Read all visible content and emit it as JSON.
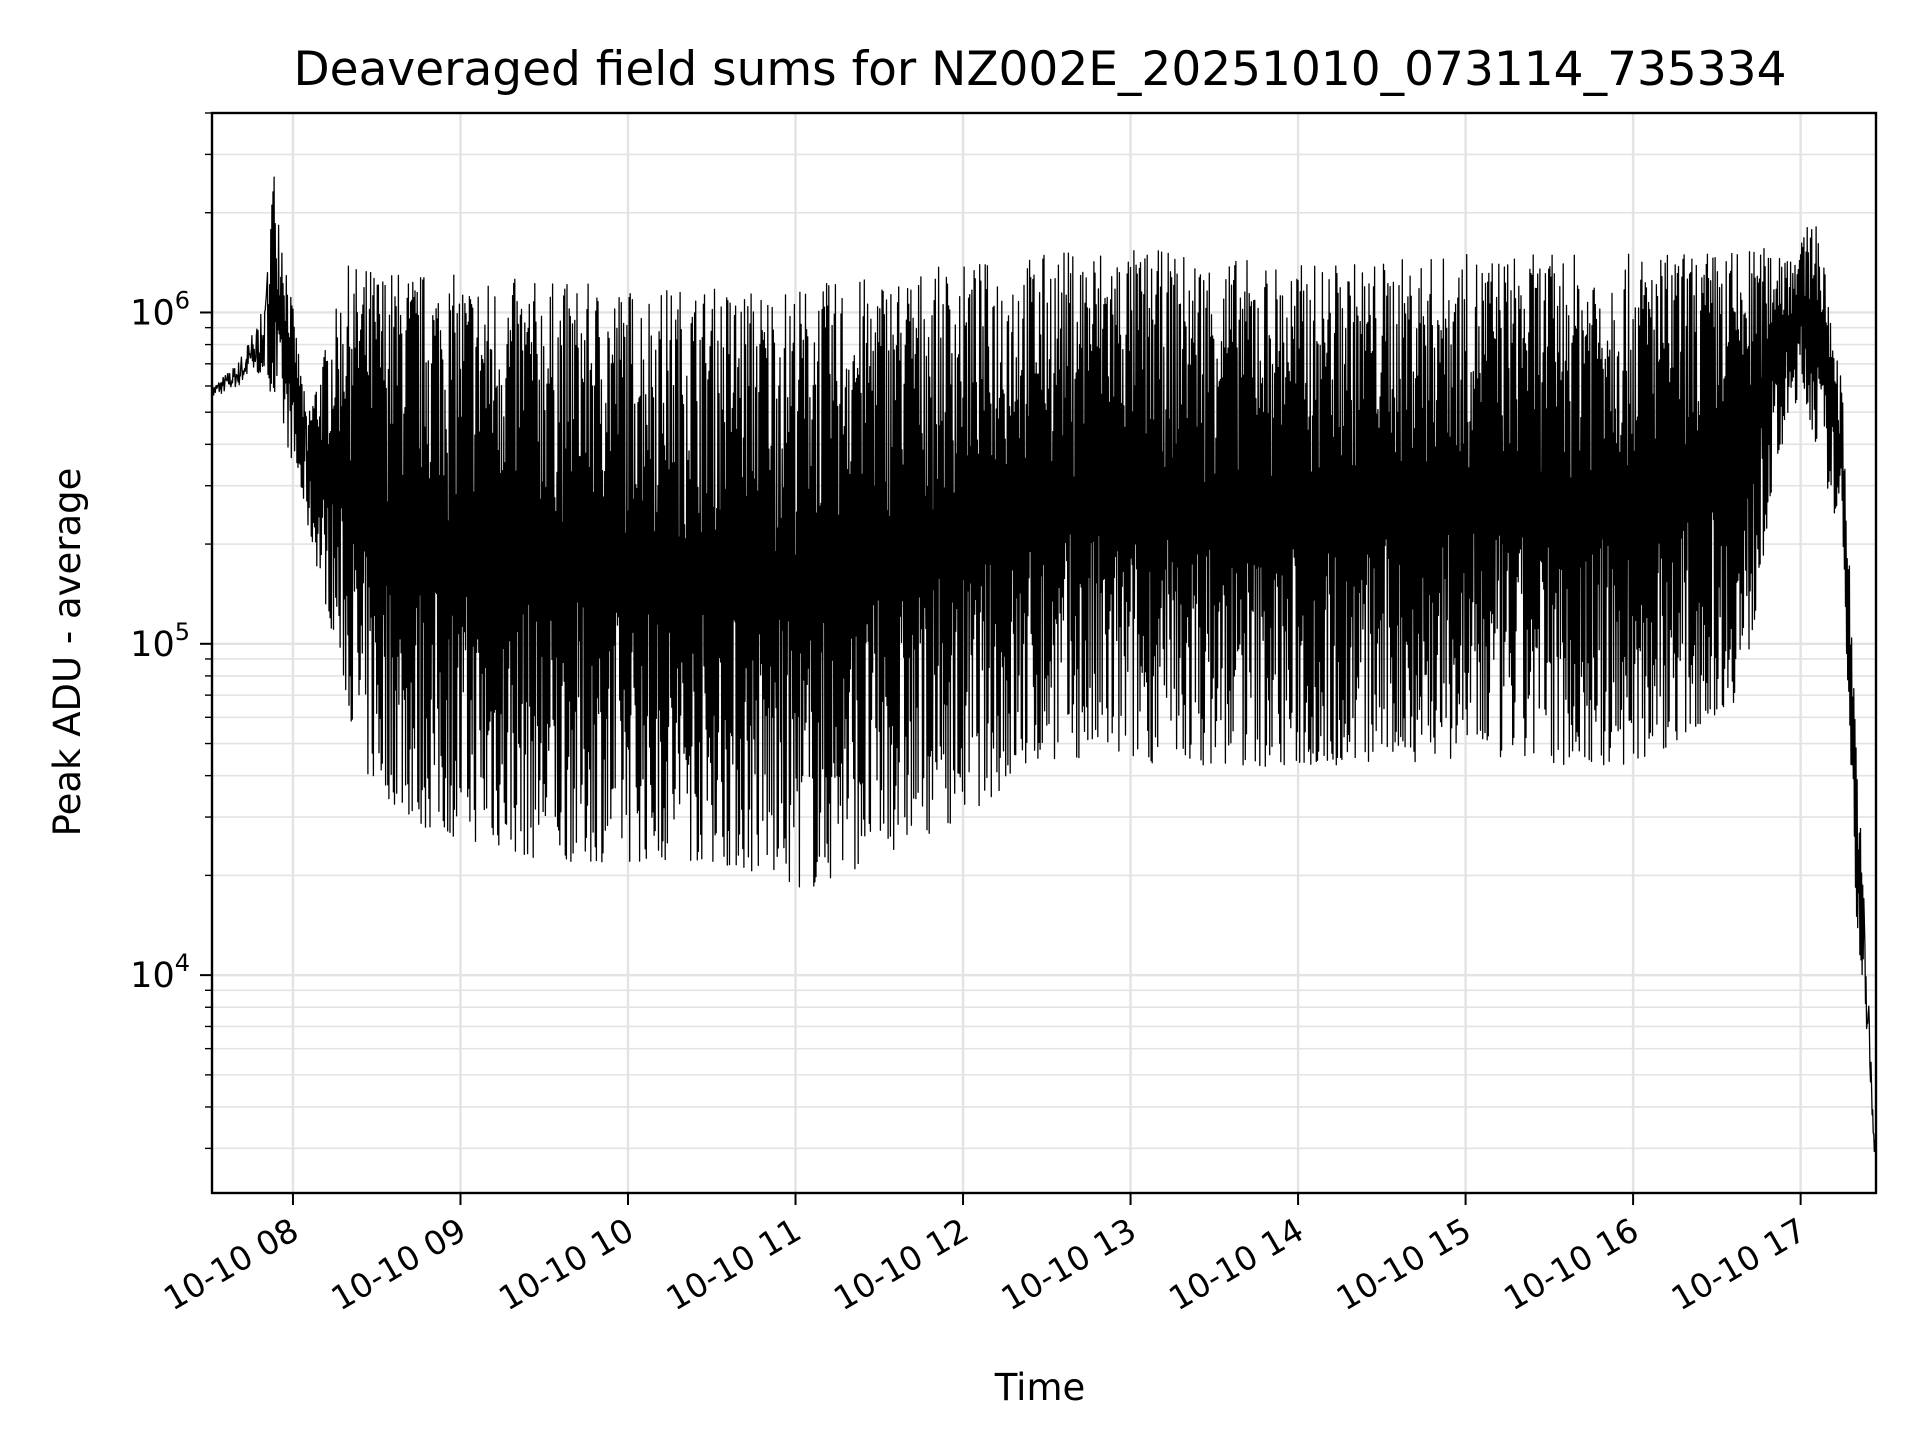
{
  "chart_data": {
    "type": "line",
    "title": "Deaveraged field sums for NZ002E_20251010_073114_735334",
    "xlabel": "Time",
    "ylabel": "Peak ADU - average",
    "yscale": "log",
    "xlim": [
      "2025-10-10T07:31",
      "2025-10-10T17:27"
    ],
    "ylim": [
      2200,
      4000000
    ],
    "grid": true,
    "x_tick_labels": [
      "10-10 08",
      "10-10 09",
      "10-10 10",
      "10-10 11",
      "10-10 12",
      "10-10 13",
      "10-10 14",
      "10-10 15",
      "10-10 16",
      "10-10 17"
    ],
    "x_ticks": [
      "2025-10-10T08:00",
      "2025-10-10T09:00",
      "2025-10-10T10:00",
      "2025-10-10T11:00",
      "2025-10-10T12:00",
      "2025-10-10T13:00",
      "2025-10-10T14:00",
      "2025-10-10T15:00",
      "2025-10-10T16:00",
      "2025-10-10T17:00"
    ],
    "y_ticks": [
      {
        "value": 10000,
        "base": "10",
        "exp": "4"
      },
      {
        "value": 100000,
        "base": "10",
        "exp": "5"
      },
      {
        "value": 1000000,
        "base": "10",
        "exp": "6"
      }
    ],
    "line_color": "#000000",
    "series": [
      {
        "envelope_upper": [
          {
            "x": "2025-10-10T07:31",
            "y": 600000
          },
          {
            "x": "2025-10-10T07:40",
            "y": 700000
          },
          {
            "x": "2025-10-10T07:50",
            "y": 1050000
          },
          {
            "x": "2025-10-10T07:53",
            "y": 2800000
          },
          {
            "x": "2025-10-10T08:05",
            "y": 500000
          },
          {
            "x": "2025-10-10T08:20",
            "y": 1400000
          },
          {
            "x": "2025-10-10T09:00",
            "y": 1300000
          },
          {
            "x": "2025-10-10T10:00",
            "y": 1200000
          },
          {
            "x": "2025-10-10T11:00",
            "y": 1200000
          },
          {
            "x": "2025-10-10T12:00",
            "y": 1400000
          },
          {
            "x": "2025-10-10T12:50",
            "y": 1600000
          },
          {
            "x": "2025-10-10T14:00",
            "y": 1400000
          },
          {
            "x": "2025-10-10T15:00",
            "y": 1500000
          },
          {
            "x": "2025-10-10T16:00",
            "y": 1500000
          },
          {
            "x": "2025-10-10T17:00",
            "y": 1600000
          },
          {
            "x": "2025-10-10T17:05",
            "y": 2100000
          },
          {
            "x": "2025-10-10T17:15",
            "y": 600000
          },
          {
            "x": "2025-10-10T17:20",
            "y": 50000
          },
          {
            "x": "2025-10-10T17:27",
            "y": 3000
          }
        ],
        "envelope_lower": [
          {
            "x": "2025-10-10T07:31",
            "y": 550000
          },
          {
            "x": "2025-10-10T07:50",
            "y": 650000
          },
          {
            "x": "2025-10-10T08:00",
            "y": 350000
          },
          {
            "x": "2025-10-10T08:15",
            "y": 100000
          },
          {
            "x": "2025-10-10T08:25",
            "y": 40000
          },
          {
            "x": "2025-10-10T08:45",
            "y": 28000
          },
          {
            "x": "2025-10-10T09:30",
            "y": 22000
          },
          {
            "x": "2025-10-10T10:30",
            "y": 22000
          },
          {
            "x": "2025-10-10T11:05",
            "y": 18000
          },
          {
            "x": "2025-10-10T12:00",
            "y": 30000
          },
          {
            "x": "2025-10-10T12:30",
            "y": 45000
          },
          {
            "x": "2025-10-10T14:00",
            "y": 42000
          },
          {
            "x": "2025-10-10T15:00",
            "y": 45000
          },
          {
            "x": "2025-10-10T16:00",
            "y": 42000
          },
          {
            "x": "2025-10-10T16:40",
            "y": 70000
          },
          {
            "x": "2025-10-10T16:50",
            "y": 300000
          },
          {
            "x": "2025-10-10T17:00",
            "y": 600000
          },
          {
            "x": "2025-10-10T17:15",
            "y": 200000
          },
          {
            "x": "2025-10-10T17:20",
            "y": 15000
          },
          {
            "x": "2025-10-10T17:27",
            "y": 2500
          }
        ]
      }
    ]
  }
}
